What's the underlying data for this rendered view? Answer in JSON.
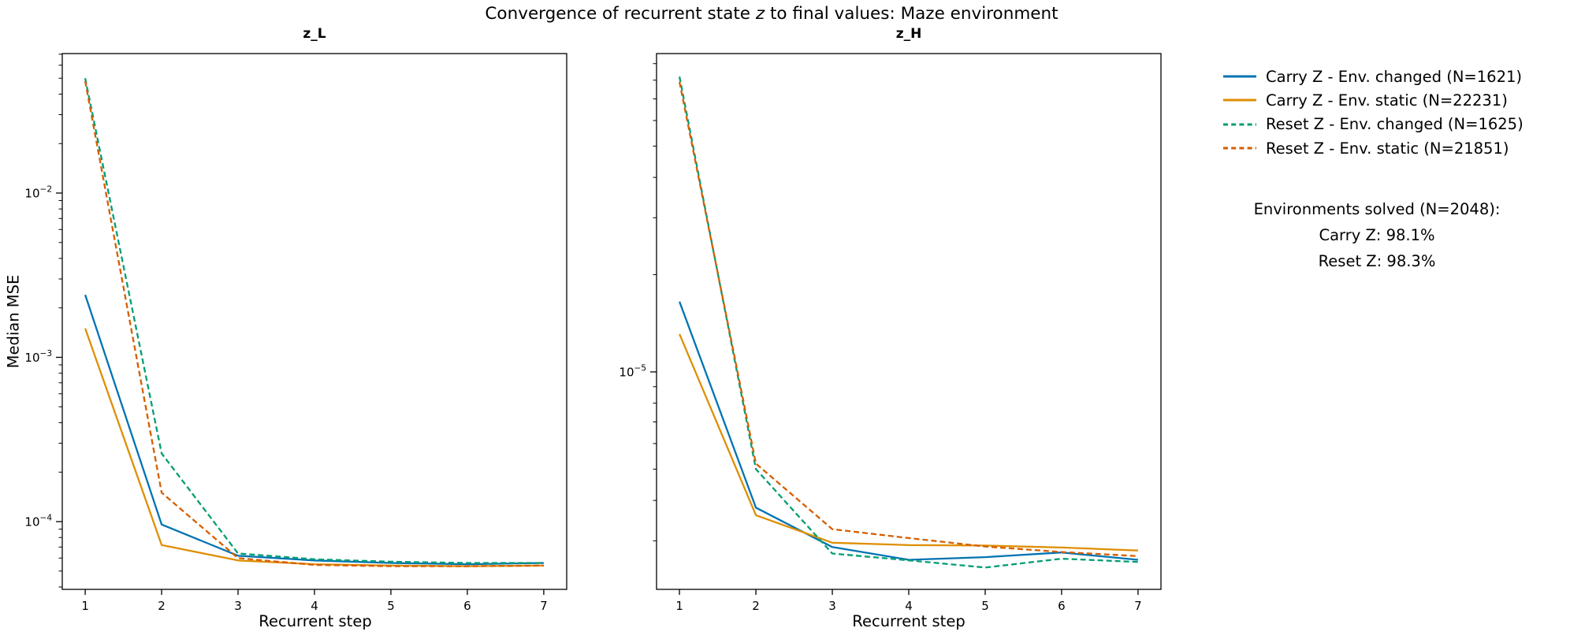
{
  "figure": {
    "title_pre": "Convergence of recurrent state ",
    "title_z": "z",
    "title_post": " to final values: Maze environment",
    "xlabel": "Recurrent step",
    "ylabel": "Median MSE"
  },
  "colors": {
    "carry_changed": "#0173b2",
    "carry_static": "#de8f05",
    "reset_changed": "#029e73",
    "reset_static": "#d55e00",
    "axis": "#000000"
  },
  "legend": {
    "items": [
      {
        "label": "Carry Z - Env. changed (N=1621)",
        "color": "#0173b2",
        "style": "solid"
      },
      {
        "label": "Carry Z - Env. static (N=22231)",
        "color": "#de8f05",
        "style": "solid"
      },
      {
        "label": "Reset Z - Env. changed (N=1625)",
        "color": "#029e73",
        "style": "dashed"
      },
      {
        "label": "Reset Z - Env. static (N=21851)",
        "color": "#d55e00",
        "style": "dashed"
      }
    ]
  },
  "annotation": {
    "line1": "Environments solved (N=2048):",
    "line2": "Carry Z: 98.1%",
    "line3": "Reset Z: 98.3%"
  },
  "chart_data": [
    {
      "type": "line",
      "title": "z_L",
      "xlabel": "Recurrent step",
      "ylabel": "Median MSE",
      "yscale": "log",
      "xlim": [
        0.7,
        7.3
      ],
      "ylim": [
        3.87e-05,
        0.0706
      ],
      "xticks": [
        1,
        2,
        3,
        4,
        5,
        6,
        7
      ],
      "ytick_exponents": [
        -2,
        -3,
        -4
      ],
      "grid": false,
      "series": [
        {
          "name": "Carry Z - Env. changed (N=1621)",
          "color": "#0173b2",
          "dash": false,
          "values": [
            0.0024,
            9.6e-05,
            6.2e-05,
            5.8e-05,
            5.6e-05,
            5.5e-05,
            5.6e-05
          ]
        },
        {
          "name": "Carry Z - Env. static (N=22231)",
          "color": "#de8f05",
          "dash": false,
          "values": [
            0.0015,
            7.2e-05,
            5.8e-05,
            5.5e-05,
            5.4e-05,
            5.35e-05,
            5.4e-05
          ]
        },
        {
          "name": "Reset Z - Env. changed (N=1625)",
          "color": "#029e73",
          "dash": true,
          "values": [
            0.05,
            0.00026,
            6.4e-05,
            5.9e-05,
            5.7e-05,
            5.6e-05,
            5.6e-05
          ]
        },
        {
          "name": "Reset Z - Env. static (N=21851)",
          "color": "#d55e00",
          "dash": true,
          "values": [
            0.048,
            0.00015,
            6e-05,
            5.45e-05,
            5.35e-05,
            5.35e-05,
            5.4e-05
          ]
        }
      ]
    },
    {
      "type": "line",
      "title": "z_H",
      "xlabel": "Recurrent step",
      "ylabel": "",
      "yscale": "log",
      "xlim": [
        0.7,
        7.3
      ],
      "ylim": [
        2.12e-06,
        9.66e-05
      ],
      "xticks": [
        1,
        2,
        3,
        4,
        5,
        6,
        7
      ],
      "ytick_exponents": [
        -5
      ],
      "grid": false,
      "series": [
        {
          "name": "Carry Z - Env. changed (N=1621)",
          "color": "#0173b2",
          "dash": false,
          "values": [
            1.65e-05,
            3.8e-06,
            2.87e-06,
            2.62e-06,
            2.67e-06,
            2.76e-06,
            2.62e-06
          ]
        },
        {
          "name": "Carry Z - Env. static (N=22231)",
          "color": "#de8f05",
          "dash": false,
          "values": [
            1.31e-05,
            3.6e-06,
            2.96e-06,
            2.91e-06,
            2.9e-06,
            2.86e-06,
            2.8e-06
          ]
        },
        {
          "name": "Reset Z - Env. changed (N=1625)",
          "color": "#029e73",
          "dash": true,
          "values": [
            8.2e-05,
            5e-06,
            2.74e-06,
            2.61e-06,
            2.48e-06,
            2.64e-06,
            2.58e-06
          ]
        },
        {
          "name": "Reset Z - Env. static (N=21851)",
          "color": "#d55e00",
          "dash": true,
          "values": [
            7.9e-05,
            5.2e-06,
            3.26e-06,
            3.06e-06,
            2.88e-06,
            2.77e-06,
            2.69e-06
          ]
        }
      ]
    }
  ]
}
